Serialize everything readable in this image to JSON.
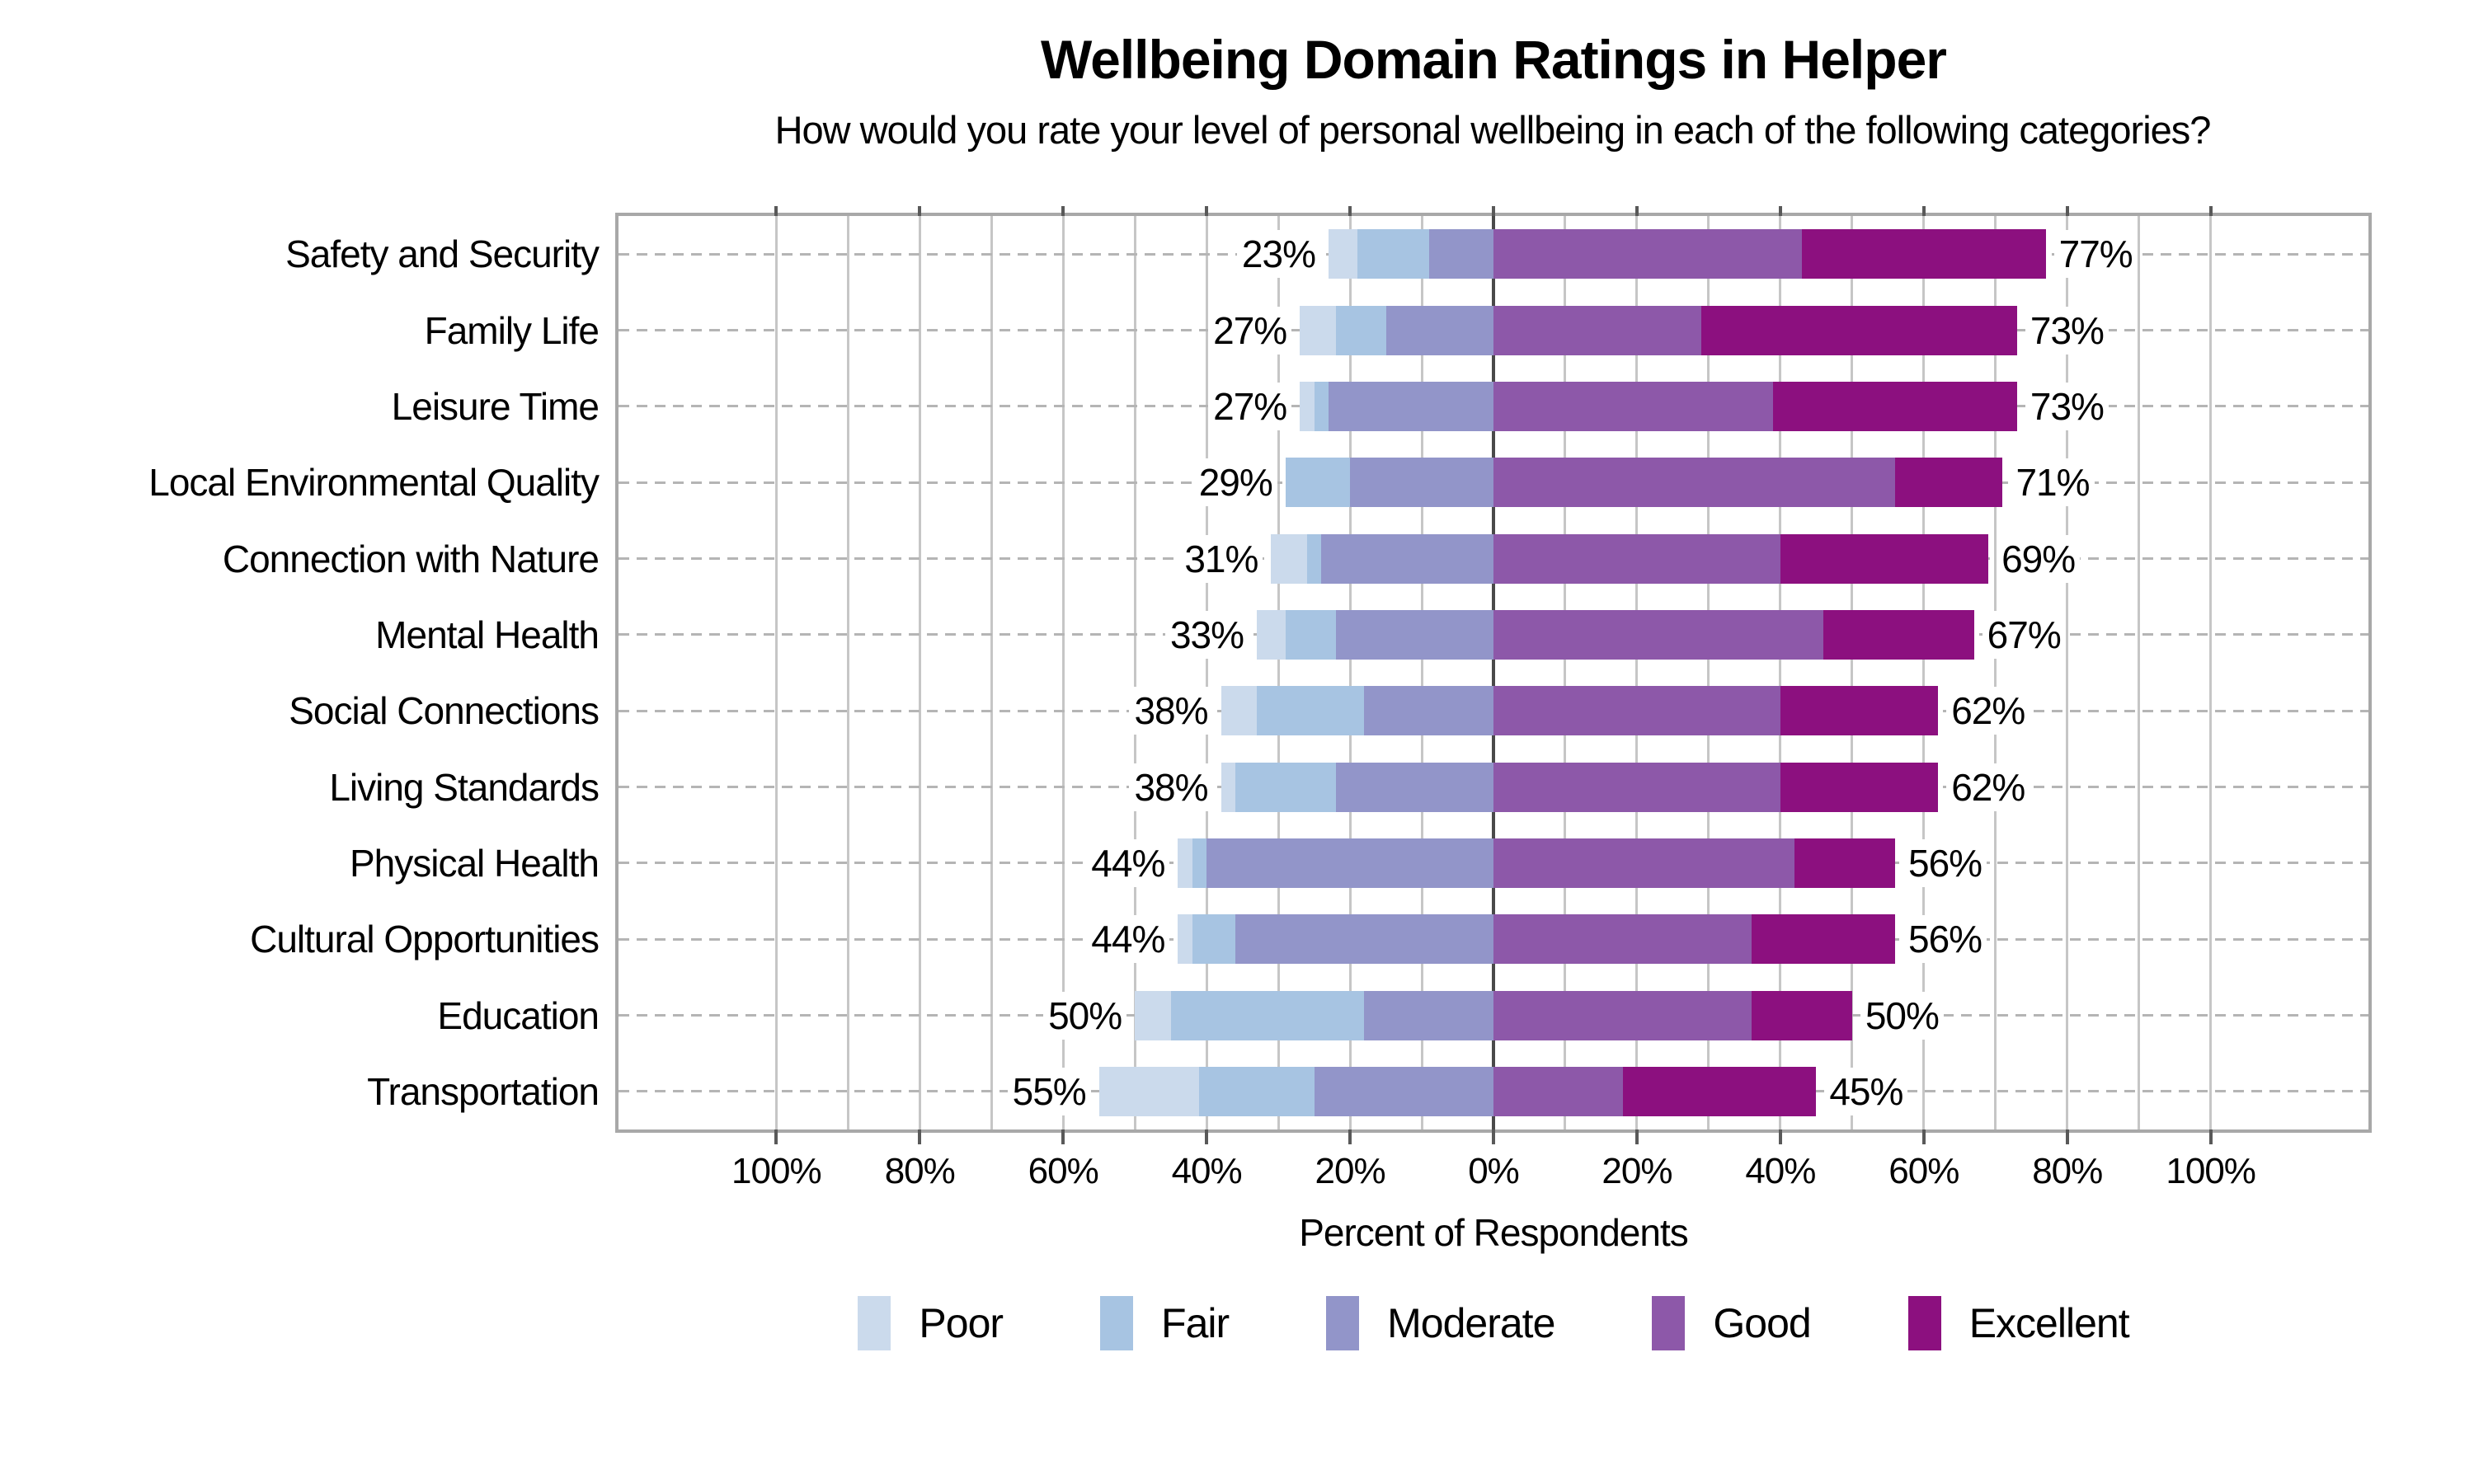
{
  "chart_data": {
    "type": "bar",
    "variant": "diverging-stacked-horizontal",
    "title": "Wellbeing Domain Ratings in Helper",
    "subtitle": "How would you rate your level of personal wellbeing in each of the following categories?",
    "xlabel": "Percent of Respondents",
    "legend": [
      "Poor",
      "Fair",
      "Moderate",
      "Good",
      "Excellent"
    ],
    "colors": {
      "Poor": "#cbdaec",
      "Fair": "#a7c4e2",
      "Moderate": "#9295c9",
      "Good": "#8d58a9",
      "Excellent": "#8c107f",
      "grid_minor": "#c6c6c6",
      "zero_line": "#4a4a4a",
      "frame": "#a8a8a8",
      "row_dash": "#b5b5b5",
      "tick": "#595959"
    },
    "negative_series": [
      "Poor",
      "Fair",
      "Moderate"
    ],
    "positive_series": [
      "Good",
      "Excellent"
    ],
    "xlim": [
      -122,
      122
    ],
    "gridline_step": 10,
    "x_ticks": [
      {
        "value": -100,
        "label": "100%"
      },
      {
        "value": -80,
        "label": "80%"
      },
      {
        "value": -60,
        "label": "60%"
      },
      {
        "value": -40,
        "label": "40%"
      },
      {
        "value": -20,
        "label": "20%"
      },
      {
        "value": 0,
        "label": "0%"
      },
      {
        "value": 20,
        "label": "20%"
      },
      {
        "value": 40,
        "label": "40%"
      },
      {
        "value": 60,
        "label": "60%"
      },
      {
        "value": 80,
        "label": "80%"
      },
      {
        "value": 100,
        "label": "100%"
      }
    ],
    "rows": [
      {
        "category": "Safety and Security",
        "values": {
          "Poor": 4,
          "Fair": 10,
          "Moderate": 9,
          "Good": 43,
          "Excellent": 34
        },
        "neg_label": "23%",
        "pos_label": "77%"
      },
      {
        "category": "Family Life",
        "values": {
          "Poor": 5,
          "Fair": 7,
          "Moderate": 15,
          "Good": 29,
          "Excellent": 44
        },
        "neg_label": "27%",
        "pos_label": "73%"
      },
      {
        "category": "Leisure Time",
        "values": {
          "Poor": 2,
          "Fair": 2,
          "Moderate": 23,
          "Good": 39,
          "Excellent": 34
        },
        "neg_label": "27%",
        "pos_label": "73%"
      },
      {
        "category": "Local Environmental Quality",
        "values": {
          "Poor": 0,
          "Fair": 9,
          "Moderate": 20,
          "Good": 56,
          "Excellent": 15
        },
        "neg_label": "29%",
        "pos_label": "71%"
      },
      {
        "category": "Connection with Nature",
        "values": {
          "Poor": 5,
          "Fair": 2,
          "Moderate": 24,
          "Good": 40,
          "Excellent": 29
        },
        "neg_label": "31%",
        "pos_label": "69%"
      },
      {
        "category": "Mental Health",
        "values": {
          "Poor": 4,
          "Fair": 7,
          "Moderate": 22,
          "Good": 46,
          "Excellent": 21
        },
        "neg_label": "33%",
        "pos_label": "67%"
      },
      {
        "category": "Social Connections",
        "values": {
          "Poor": 5,
          "Fair": 15,
          "Moderate": 18,
          "Good": 40,
          "Excellent": 22
        },
        "neg_label": "38%",
        "pos_label": "62%"
      },
      {
        "category": "Living Standards",
        "values": {
          "Poor": 2,
          "Fair": 14,
          "Moderate": 22,
          "Good": 40,
          "Excellent": 22
        },
        "neg_label": "38%",
        "pos_label": "62%"
      },
      {
        "category": "Physical Health",
        "values": {
          "Poor": 2,
          "Fair": 2,
          "Moderate": 40,
          "Good": 42,
          "Excellent": 14
        },
        "neg_label": "44%",
        "pos_label": "56%"
      },
      {
        "category": "Cultural Opportunities",
        "values": {
          "Poor": 2,
          "Fair": 6,
          "Moderate": 36,
          "Good": 36,
          "Excellent": 20
        },
        "neg_label": "44%",
        "pos_label": "56%"
      },
      {
        "category": "Education",
        "values": {
          "Poor": 5,
          "Fair": 27,
          "Moderate": 18,
          "Good": 36,
          "Excellent": 14
        },
        "neg_label": "50%",
        "pos_label": "50%"
      },
      {
        "category": "Transportation",
        "values": {
          "Poor": 14,
          "Fair": 16,
          "Moderate": 25,
          "Good": 18,
          "Excellent": 27
        },
        "neg_label": "55%",
        "pos_label": "45%"
      }
    ]
  }
}
